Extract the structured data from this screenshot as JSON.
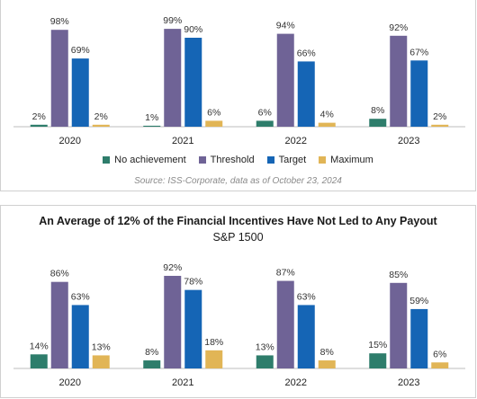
{
  "colors": {
    "No achievement": "#2e7d6b",
    "Threshold": "#6f6396",
    "Target": "#1565b5",
    "Maximum": "#e1b556"
  },
  "chart_data": [
    {
      "type": "bar",
      "title": "",
      "subtitle": "",
      "categories": [
        "2020",
        "2021",
        "2022",
        "2023"
      ],
      "series": [
        {
          "name": "No achievement",
          "values": [
            2,
            1,
            6,
            8
          ]
        },
        {
          "name": "Threshold",
          "values": [
            98,
            99,
            94,
            92
          ]
        },
        {
          "name": "Target",
          "values": [
            69,
            90,
            66,
            67
          ]
        },
        {
          "name": "Maximum",
          "values": [
            2,
            6,
            4,
            2
          ]
        }
      ],
      "value_suffix": "%",
      "ylim": [
        0,
        100
      ],
      "grid": false,
      "legend": "bottom",
      "source": "Source: ISS-Corporate, data as of October 23, 2024"
    },
    {
      "type": "bar",
      "title": "An Average of 12% of the Financial Incentives Have Not Led to Any Payout",
      "subtitle": "S&P 1500",
      "categories": [
        "2020",
        "2021",
        "2022",
        "2023"
      ],
      "series": [
        {
          "name": "No achievement",
          "values": [
            14,
            8,
            13,
            15
          ]
        },
        {
          "name": "Threshold",
          "values": [
            86,
            92,
            87,
            85
          ]
        },
        {
          "name": "Target",
          "values": [
            63,
            78,
            63,
            59
          ]
        },
        {
          "name": "Maximum",
          "values": [
            13,
            18,
            8,
            6
          ]
        }
      ],
      "value_suffix": "%",
      "ylim": [
        0,
        100
      ],
      "grid": false
    }
  ]
}
